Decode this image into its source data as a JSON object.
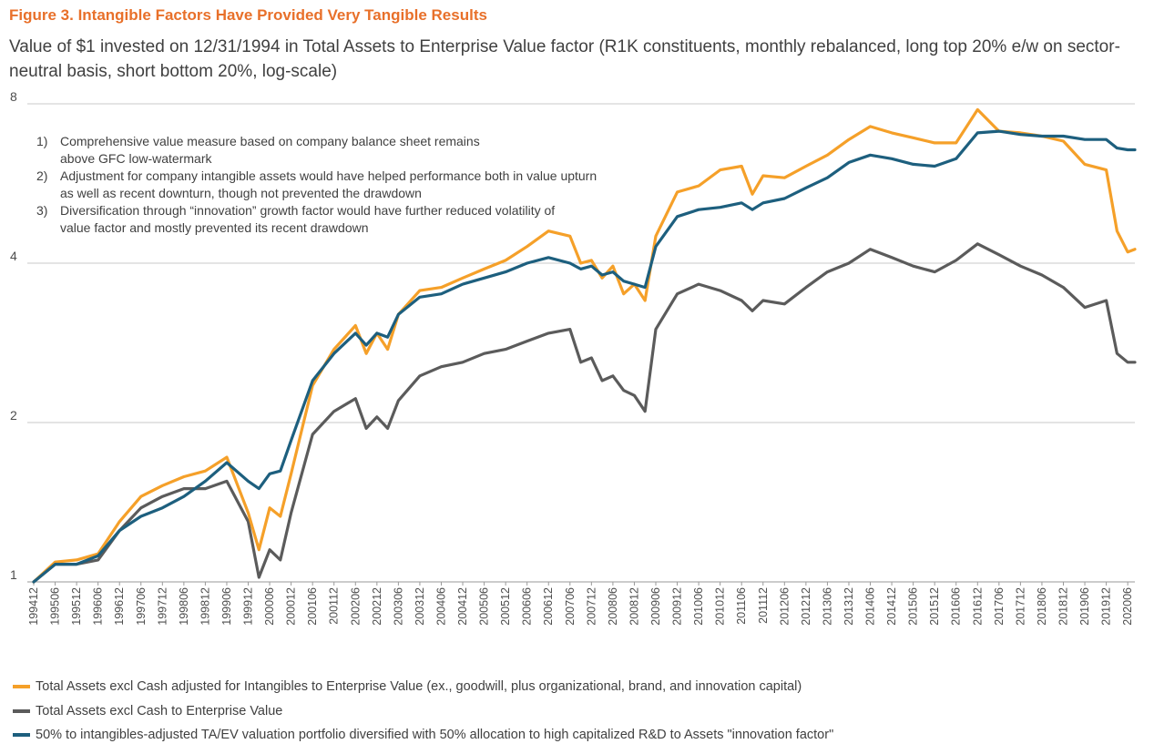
{
  "figure_title": "Figure 3. Intangible Factors Have Provided Very Tangible Results",
  "subtitle": "Value of $1 invested on 12/31/1994 in Total Assets to Enterprise Value factor (R1K constituents, monthly rebalanced, long top 20% e/w on sector-neutral basis, short bottom 20%, log-scale)",
  "annotations": [
    {
      "num": "1)",
      "text": "Comprehensive value measure based on company balance sheet remains above GFC low-watermark"
    },
    {
      "num": "2)",
      "text": "Adjustment for company intangible assets would have helped performance both in value upturn as well as recent downturn, though not prevented the drawdown"
    },
    {
      "num": "3)",
      "text": "Diversification through “innovation” growth factor would have further reduced volatility of value factor and mostly prevented its recent drawdown"
    }
  ],
  "colors": {
    "orange": "#f5a029",
    "gray": "#5b5b5b",
    "blue": "#1d5f7e",
    "title": "#e8702a"
  },
  "chart_data": {
    "type": "line",
    "y_scale": "log2",
    "ylim": [
      1,
      8
    ],
    "y_ticks": [
      "1",
      "2",
      "4",
      "8"
    ],
    "x_range": [
      "199412",
      "202008"
    ],
    "x_tick_labels": [
      "199412",
      "199506",
      "199512",
      "199606",
      "199612",
      "199706",
      "199712",
      "199806",
      "199812",
      "199906",
      "199912",
      "200006",
      "200012",
      "200106",
      "200112",
      "200206",
      "200212",
      "200306",
      "200312",
      "200406",
      "200412",
      "200506",
      "200512",
      "200606",
      "200612",
      "200706",
      "200712",
      "200806",
      "200812",
      "200906",
      "200912",
      "201006",
      "201012",
      "201106",
      "201112",
      "201206",
      "201212",
      "201306",
      "201312",
      "201406",
      "201412",
      "201506",
      "201512",
      "201606",
      "201612",
      "201706",
      "201712",
      "201806",
      "201812",
      "201906",
      "201912",
      "202006"
    ],
    "series": [
      {
        "name": "Total Assets excl Cash adjusted for Intangibles to Enterprise Value (ex., goodwill, plus organizational, brand, and innovation capital)",
        "color": "#f5a029",
        "points": [
          [
            "199412",
            1.0
          ],
          [
            "199506",
            1.09
          ],
          [
            "199512",
            1.1
          ],
          [
            "199606",
            1.13
          ],
          [
            "199612",
            1.3
          ],
          [
            "199706",
            1.45
          ],
          [
            "199712",
            1.52
          ],
          [
            "199806",
            1.58
          ],
          [
            "199812",
            1.62
          ],
          [
            "199906",
            1.72
          ],
          [
            "199912",
            1.35
          ],
          [
            "200003",
            1.15
          ],
          [
            "200006",
            1.38
          ],
          [
            "200009",
            1.33
          ],
          [
            "200012",
            1.6
          ],
          [
            "200106",
            2.35
          ],
          [
            "200112",
            2.75
          ],
          [
            "200206",
            3.05
          ],
          [
            "200209",
            2.7
          ],
          [
            "200212",
            2.95
          ],
          [
            "200303",
            2.75
          ],
          [
            "200306",
            3.2
          ],
          [
            "200312",
            3.55
          ],
          [
            "200406",
            3.6
          ],
          [
            "200412",
            3.75
          ],
          [
            "200506",
            3.9
          ],
          [
            "200512",
            4.05
          ],
          [
            "200606",
            4.3
          ],
          [
            "200612",
            4.6
          ],
          [
            "200706",
            4.5
          ],
          [
            "200709",
            4.0
          ],
          [
            "200712",
            4.05
          ],
          [
            "200803",
            3.75
          ],
          [
            "200806",
            3.95
          ],
          [
            "200809",
            3.5
          ],
          [
            "200812",
            3.65
          ],
          [
            "200903",
            3.4
          ],
          [
            "200906",
            4.5
          ],
          [
            "200912",
            5.45
          ],
          [
            "201006",
            5.6
          ],
          [
            "201012",
            6.0
          ],
          [
            "201106",
            6.1
          ],
          [
            "201109",
            5.4
          ],
          [
            "201112",
            5.85
          ],
          [
            "201206",
            5.8
          ],
          [
            "201212",
            6.1
          ],
          [
            "201306",
            6.4
          ],
          [
            "201312",
            6.85
          ],
          [
            "201406",
            7.25
          ],
          [
            "201412",
            7.05
          ],
          [
            "201506",
            6.9
          ],
          [
            "201512",
            6.75
          ],
          [
            "201606",
            6.75
          ],
          [
            "201612",
            7.8
          ],
          [
            "201706",
            7.1
          ],
          [
            "201712",
            7.05
          ],
          [
            "201806",
            6.95
          ],
          [
            "201812",
            6.8
          ],
          [
            "201906",
            6.15
          ],
          [
            "201912",
            6.0
          ],
          [
            "202003",
            4.6
          ],
          [
            "202006",
            4.2
          ],
          [
            "202008",
            4.25
          ]
        ]
      },
      {
        "name": "Total Assets excl Cash to Enterprise Value",
        "color": "#5b5b5b",
        "points": [
          [
            "199412",
            1.0
          ],
          [
            "199506",
            1.08
          ],
          [
            "199512",
            1.08
          ],
          [
            "199606",
            1.1
          ],
          [
            "199612",
            1.25
          ],
          [
            "199706",
            1.38
          ],
          [
            "199712",
            1.45
          ],
          [
            "199806",
            1.5
          ],
          [
            "199812",
            1.5
          ],
          [
            "199906",
            1.55
          ],
          [
            "199912",
            1.3
          ],
          [
            "200003",
            1.02
          ],
          [
            "200006",
            1.15
          ],
          [
            "200009",
            1.1
          ],
          [
            "200012",
            1.35
          ],
          [
            "200106",
            1.9
          ],
          [
            "200112",
            2.1
          ],
          [
            "200206",
            2.22
          ],
          [
            "200209",
            1.95
          ],
          [
            "200212",
            2.05
          ],
          [
            "200303",
            1.95
          ],
          [
            "200306",
            2.2
          ],
          [
            "200312",
            2.45
          ],
          [
            "200406",
            2.55
          ],
          [
            "200412",
            2.6
          ],
          [
            "200506",
            2.7
          ],
          [
            "200512",
            2.75
          ],
          [
            "200606",
            2.85
          ],
          [
            "200612",
            2.95
          ],
          [
            "200706",
            3.0
          ],
          [
            "200709",
            2.6
          ],
          [
            "200712",
            2.65
          ],
          [
            "200803",
            2.4
          ],
          [
            "200806",
            2.45
          ],
          [
            "200809",
            2.3
          ],
          [
            "200812",
            2.25
          ],
          [
            "200903",
            2.1
          ],
          [
            "200906",
            3.0
          ],
          [
            "200912",
            3.5
          ],
          [
            "201006",
            3.65
          ],
          [
            "201012",
            3.55
          ],
          [
            "201106",
            3.4
          ],
          [
            "201109",
            3.25
          ],
          [
            "201112",
            3.4
          ],
          [
            "201206",
            3.35
          ],
          [
            "201212",
            3.6
          ],
          [
            "201306",
            3.85
          ],
          [
            "201312",
            4.0
          ],
          [
            "201406",
            4.25
          ],
          [
            "201412",
            4.1
          ],
          [
            "201506",
            3.95
          ],
          [
            "201512",
            3.85
          ],
          [
            "201606",
            4.05
          ],
          [
            "201612",
            4.35
          ],
          [
            "201706",
            4.15
          ],
          [
            "201712",
            3.95
          ],
          [
            "201806",
            3.8
          ],
          [
            "201812",
            3.6
          ],
          [
            "201906",
            3.3
          ],
          [
            "201912",
            3.4
          ],
          [
            "202003",
            2.7
          ],
          [
            "202006",
            2.6
          ],
          [
            "202008",
            2.6
          ]
        ]
      },
      {
        "name": "50% to intangibles-adjusted TA/EV valuation portfolio diversified with 50% allocation to high capitalized R&D to Assets \"innovation factor\"",
        "color": "#1d5f7e",
        "points": [
          [
            "199412",
            1.0
          ],
          [
            "199506",
            1.08
          ],
          [
            "199512",
            1.08
          ],
          [
            "199606",
            1.12
          ],
          [
            "199612",
            1.25
          ],
          [
            "199706",
            1.33
          ],
          [
            "199712",
            1.38
          ],
          [
            "199806",
            1.45
          ],
          [
            "199812",
            1.55
          ],
          [
            "199906",
            1.68
          ],
          [
            "199912",
            1.55
          ],
          [
            "200003",
            1.5
          ],
          [
            "200006",
            1.6
          ],
          [
            "200009",
            1.62
          ],
          [
            "200012",
            1.85
          ],
          [
            "200106",
            2.4
          ],
          [
            "200112",
            2.7
          ],
          [
            "200206",
            2.95
          ],
          [
            "200209",
            2.8
          ],
          [
            "200212",
            2.95
          ],
          [
            "200303",
            2.9
          ],
          [
            "200306",
            3.2
          ],
          [
            "200312",
            3.45
          ],
          [
            "200406",
            3.5
          ],
          [
            "200412",
            3.65
          ],
          [
            "200506",
            3.75
          ],
          [
            "200512",
            3.85
          ],
          [
            "200606",
            4.0
          ],
          [
            "200612",
            4.1
          ],
          [
            "200706",
            4.0
          ],
          [
            "200709",
            3.9
          ],
          [
            "200712",
            3.95
          ],
          [
            "200803",
            3.8
          ],
          [
            "200806",
            3.85
          ],
          [
            "200809",
            3.7
          ],
          [
            "200812",
            3.65
          ],
          [
            "200903",
            3.6
          ],
          [
            "200906",
            4.3
          ],
          [
            "200912",
            4.9
          ],
          [
            "201006",
            5.05
          ],
          [
            "201012",
            5.1
          ],
          [
            "201106",
            5.2
          ],
          [
            "201109",
            5.05
          ],
          [
            "201112",
            5.2
          ],
          [
            "201206",
            5.3
          ],
          [
            "201212",
            5.55
          ],
          [
            "201306",
            5.8
          ],
          [
            "201312",
            6.2
          ],
          [
            "201406",
            6.4
          ],
          [
            "201412",
            6.3
          ],
          [
            "201506",
            6.15
          ],
          [
            "201512",
            6.1
          ],
          [
            "201606",
            6.3
          ],
          [
            "201612",
            7.05
          ],
          [
            "201706",
            7.1
          ],
          [
            "201712",
            7.0
          ],
          [
            "201806",
            6.95
          ],
          [
            "201812",
            6.95
          ],
          [
            "201906",
            6.85
          ],
          [
            "201912",
            6.85
          ],
          [
            "202003",
            6.6
          ],
          [
            "202006",
            6.55
          ],
          [
            "202008",
            6.55
          ]
        ]
      }
    ]
  }
}
